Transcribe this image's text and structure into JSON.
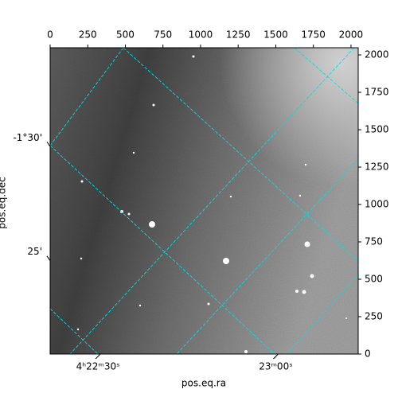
{
  "chart_data": {
    "type": "image",
    "x_label": "pos.eq.ra",
    "y_label": "pos.eq.dec",
    "xlim": [
      0,
      2048
    ],
    "ylim": [
      0,
      2048
    ],
    "xticks": [
      0,
      250,
      500,
      750,
      1000,
      1250,
      1500,
      1750,
      2000
    ],
    "yticks": [
      0,
      250,
      500,
      750,
      1000,
      1250,
      1500,
      1750,
      2000
    ],
    "world_xticks": [
      {
        "value": 318,
        "label": "4ʰ22ᵐ30ˢ"
      },
      {
        "value": 1500,
        "label": "23ᵐ00ˢ"
      }
    ],
    "world_yticks": [
      {
        "value": 1403,
        "label": "-1°30'"
      },
      {
        "value": 640,
        "label": "25'"
      }
    ],
    "grid_color": "#00e0e0"
  }
}
